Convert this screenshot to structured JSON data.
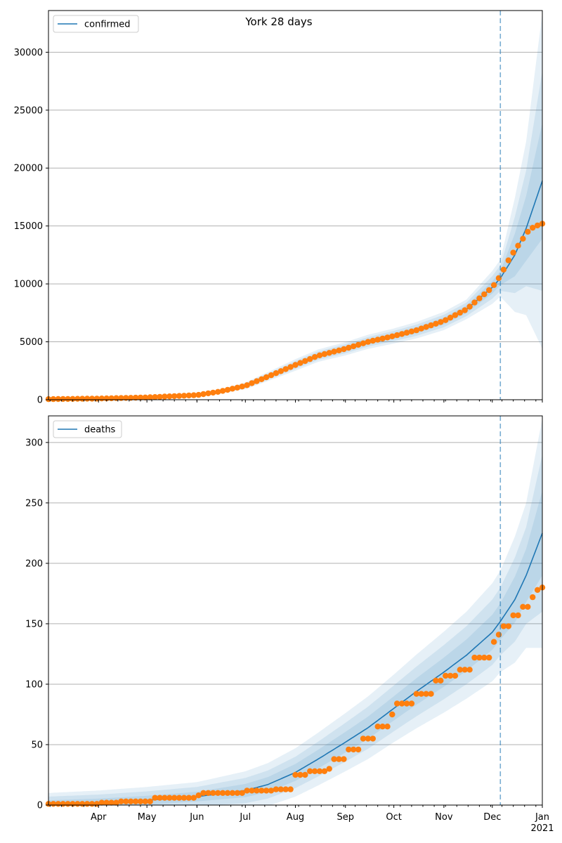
{
  "figure": {
    "title": "York 28 days",
    "x_axis": {
      "type": "date",
      "range": [
        "2020-03-01",
        "2021-01-01"
      ],
      "month_ticks": [
        {
          "date": "2020-04-01",
          "label": "Apr",
          "sublabel": ""
        },
        {
          "date": "2020-05-01",
          "label": "May",
          "sublabel": ""
        },
        {
          "date": "2020-06-01",
          "label": "Jun",
          "sublabel": ""
        },
        {
          "date": "2020-07-01",
          "label": "Jul",
          "sublabel": ""
        },
        {
          "date": "2020-08-01",
          "label": "Aug",
          "sublabel": ""
        },
        {
          "date": "2020-09-01",
          "label": "Sep",
          "sublabel": ""
        },
        {
          "date": "2020-10-01",
          "label": "Oct",
          "sublabel": ""
        },
        {
          "date": "2020-11-01",
          "label": "Nov",
          "sublabel": ""
        },
        {
          "date": "2020-12-01",
          "label": "Dec",
          "sublabel": ""
        },
        {
          "date": "2021-01-01",
          "label": "Jan",
          "sublabel": "2021"
        }
      ]
    },
    "forecast_start": "2020-12-06"
  },
  "chart_data": [
    {
      "type": "line",
      "panel": "top",
      "title": "York 28 days",
      "legend": [
        "confirmed"
      ],
      "legend_position": "top-left",
      "grid": "horizontal",
      "ylim": [
        0,
        33600
      ],
      "yticks": [
        0,
        5000,
        10000,
        15000,
        20000,
        25000,
        30000
      ],
      "forecast_date": "2020-12-06",
      "colors": {
        "model": "#1f77b4",
        "observed": "#ff7f0e",
        "band": "#1f77b4"
      },
      "model_series": {
        "name": "confirmed",
        "x": [
          "2020-03-01",
          "2020-04-01",
          "2020-05-01",
          "2020-06-01",
          "2020-06-15",
          "2020-07-01",
          "2020-07-15",
          "2020-08-01",
          "2020-08-15",
          "2020-09-01",
          "2020-09-15",
          "2020-10-01",
          "2020-10-15",
          "2020-11-01",
          "2020-11-15",
          "2020-12-01",
          "2020-12-06",
          "2020-12-15",
          "2020-12-22",
          "2021-01-01"
        ],
        "y": [
          50,
          100,
          200,
          400,
          700,
          1200,
          2000,
          3000,
          3800,
          4400,
          5000,
          5500,
          6000,
          6800,
          7800,
          9700,
          10500,
          12500,
          14800,
          18900
        ]
      },
      "uncertainty_bands_halfwidth": [
        {
          "x": [
            "2020-03-01",
            "2020-06-01",
            "2020-08-01",
            "2020-10-01",
            "2020-11-15",
            "2020-12-06",
            "2020-12-22",
            "2021-01-01"
          ],
          "y": [
            30,
            80,
            500,
            650,
            850,
            1600,
            7500,
            14500
          ]
        },
        {
          "x": [
            "2020-03-01",
            "2020-06-01",
            "2020-08-01",
            "2020-10-01",
            "2020-11-15",
            "2020-12-06",
            "2020-12-22",
            "2021-01-01"
          ],
          "y": [
            20,
            55,
            340,
            440,
            580,
            1100,
            5000,
            9500
          ]
        },
        {
          "x": [
            "2020-03-01",
            "2020-06-01",
            "2020-08-01",
            "2020-10-01",
            "2020-11-15",
            "2020-12-06",
            "2020-12-22",
            "2021-01-01"
          ],
          "y": [
            12,
            30,
            180,
            240,
            320,
            600,
            2800,
            5000
          ]
        }
      ],
      "observed": {
        "x": [
          "2020-03-01",
          "2020-04-01",
          "2020-05-01",
          "2020-06-01",
          "2020-06-15",
          "2020-07-01",
          "2020-07-15",
          "2020-08-01",
          "2020-08-15",
          "2020-09-01",
          "2020-09-15",
          "2020-10-01",
          "2020-10-15",
          "2020-11-01",
          "2020-11-15",
          "2020-12-01",
          "2020-12-06",
          "2020-12-12",
          "2020-12-18",
          "2020-12-24",
          "2020-12-28",
          "2021-01-01"
        ],
        "y": [
          50,
          100,
          200,
          400,
          700,
          1200,
          2000,
          3000,
          3800,
          4400,
          5000,
          5500,
          6000,
          6800,
          7800,
          9700,
          10700,
          12300,
          13500,
          14700,
          15000,
          15200
        ]
      }
    },
    {
      "type": "line",
      "panel": "bottom",
      "legend": [
        "deaths"
      ],
      "legend_position": "top-left",
      "grid": "horizontal",
      "ylim": [
        0,
        322
      ],
      "yticks": [
        0,
        50,
        100,
        150,
        200,
        250,
        300
      ],
      "forecast_date": "2020-12-06",
      "colors": {
        "model": "#1f77b4",
        "observed": "#ff7f0e",
        "band": "#1f77b4"
      },
      "model_series": {
        "name": "deaths",
        "x": [
          "2020-03-01",
          "2020-04-01",
          "2020-05-01",
          "2020-06-01",
          "2020-07-01",
          "2020-07-15",
          "2020-08-01",
          "2020-08-15",
          "2020-09-01",
          "2020-09-15",
          "2020-10-01",
          "2020-10-15",
          "2020-11-01",
          "2020-11-15",
          "2020-12-01",
          "2020-12-06",
          "2020-12-15",
          "2020-12-22",
          "2021-01-01"
        ],
        "y": [
          1,
          2,
          4,
          7,
          12,
          17,
          27,
          38,
          52,
          64,
          80,
          94,
          110,
          124,
          143,
          152,
          170,
          190,
          225
        ]
      },
      "uncertainty_bands_halfwidth": [
        {
          "x": [
            "2020-03-01",
            "2020-06-01",
            "2020-08-01",
            "2020-10-01",
            "2020-11-15",
            "2020-12-06",
            "2020-12-22",
            "2021-01-01"
          ],
          "y": [
            9,
            12,
            20,
            28,
            36,
            42,
            60,
            95
          ]
        },
        {
          "x": [
            "2020-03-01",
            "2020-06-01",
            "2020-08-01",
            "2020-10-01",
            "2020-11-15",
            "2020-12-06",
            "2020-12-22",
            "2021-01-01"
          ],
          "y": [
            6,
            8,
            13,
            19,
            24,
            28,
            40,
            65
          ]
        },
        {
          "x": [
            "2020-03-01",
            "2020-06-01",
            "2020-08-01",
            "2020-10-01",
            "2020-11-15",
            "2020-12-06",
            "2020-12-22",
            "2021-01-01"
          ],
          "y": [
            3,
            4,
            7,
            10,
            13,
            15,
            22,
            35
          ]
        }
      ],
      "observed": {
        "x": [
          "2020-03-01",
          "2020-04-01",
          "2020-04-15",
          "2020-05-01",
          "2020-05-05",
          "2020-05-20",
          "2020-06-01",
          "2020-06-05",
          "2020-06-20",
          "2020-07-01",
          "2020-07-10",
          "2020-07-20",
          "2020-08-01",
          "2020-08-10",
          "2020-08-20",
          "2020-08-25",
          "2020-09-01",
          "2020-09-10",
          "2020-09-20",
          "2020-09-28",
          "2020-10-01",
          "2020-10-15",
          "2020-10-25",
          "2020-11-01",
          "2020-11-10",
          "2020-11-20",
          "2020-12-01",
          "2020-12-05",
          "2020-12-06",
          "2020-12-12",
          "2020-12-18",
          "2020-12-24",
          "2020-12-28",
          "2021-01-01"
        ],
        "y": [
          1,
          2,
          3,
          3,
          6,
          6,
          8,
          10,
          10,
          12,
          12,
          13,
          25,
          28,
          30,
          38,
          46,
          55,
          65,
          75,
          84,
          92,
          103,
          107,
          112,
          122,
          135,
          141,
          148,
          157,
          164,
          172,
          178,
          180
        ]
      }
    }
  ]
}
